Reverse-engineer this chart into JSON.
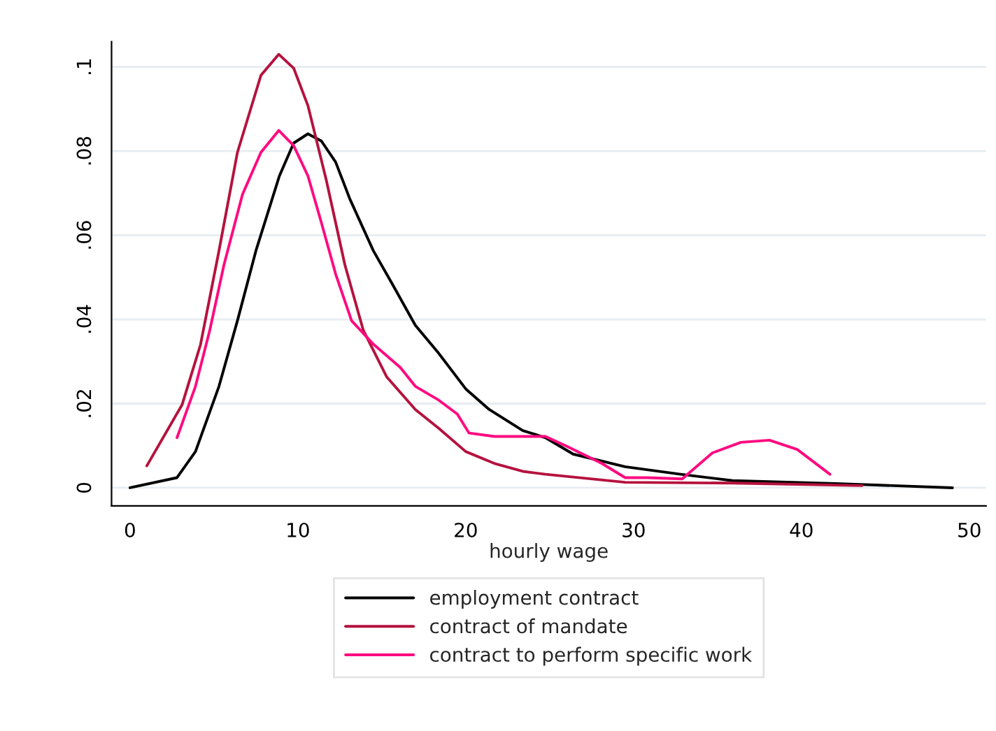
{
  "chart_data": {
    "type": "line",
    "xlabel": "hourly wage",
    "xlim": [
      -1.1,
      51
    ],
    "ylim": [
      -0.0043,
      0.106
    ],
    "xticks": [
      0,
      10,
      20,
      30,
      40,
      50
    ],
    "yticks": [
      {
        "value": 0,
        "label": "0"
      },
      {
        "value": 0.02,
        "label": ".02"
      },
      {
        "value": 0.04,
        "label": ".04"
      },
      {
        "value": 0.06,
        "label": ".06"
      },
      {
        "value": 0.08,
        "label": ".08"
      },
      {
        "value": 0.1,
        "label": ".1"
      }
    ],
    "grid": "y",
    "legend": "bottom",
    "line_style": "solid",
    "series": [
      {
        "name": "employment contract",
        "color": "#000000",
        "x": [
          0,
          2.8,
          3.9,
          5.3,
          6.4,
          7.5,
          8.9,
          9.75,
          10.6,
          11.4,
          12.25,
          13.1,
          14.5,
          15.6,
          17.0,
          18.4,
          20.0,
          21.4,
          23.4,
          24.75,
          26.4,
          29.5,
          32.8,
          35.9,
          42,
          49
        ],
        "values": [
          0.0,
          0.0024,
          0.0086,
          0.0241,
          0.0397,
          0.0563,
          0.0741,
          0.0819,
          0.0841,
          0.0824,
          0.0774,
          0.0686,
          0.0563,
          0.0486,
          0.0386,
          0.0319,
          0.0235,
          0.0186,
          0.0136,
          0.0119,
          0.008,
          0.005,
          0.0032,
          0.0017,
          0.001,
          0.0
        ]
      },
      {
        "name": "contract of mandate",
        "color": "#b5123e",
        "x": [
          1.0,
          3.1,
          4.2,
          5.3,
          6.4,
          7.8,
          8.86,
          9.75,
          10.6,
          11.7,
          12.8,
          13.9,
          15.3,
          17.0,
          18.4,
          20.0,
          21.7,
          23.4,
          24.75,
          29.5,
          35.9,
          43.6
        ],
        "values": [
          0.0052,
          0.0197,
          0.034,
          0.0563,
          0.0797,
          0.098,
          0.103,
          0.0997,
          0.0908,
          0.073,
          0.053,
          0.0374,
          0.0263,
          0.0186,
          0.0141,
          0.0086,
          0.0058,
          0.0039,
          0.0032,
          0.0013,
          0.0011,
          0.0005
        ]
      },
      {
        "name": "contract to perform specific work",
        "color": "#ff0a80",
        "x": [
          2.8,
          3.9,
          4.75,
          5.6,
          6.7,
          7.8,
          8.86,
          9.75,
          10.6,
          11.4,
          12.25,
          13.2,
          14.5,
          16.1,
          17.0,
          18.4,
          19.5,
          20.2,
          21.7,
          24.75,
          26.1,
          28.1,
          29.5,
          30.8,
          32.9,
          34.7,
          36.4,
          38.1,
          39.75,
          41.7
        ],
        "values": [
          0.0119,
          0.0241,
          0.0374,
          0.053,
          0.0697,
          0.0797,
          0.0849,
          0.0813,
          0.0741,
          0.063,
          0.0508,
          0.0397,
          0.0341,
          0.0286,
          0.0241,
          0.0208,
          0.0175,
          0.013,
          0.0122,
          0.0122,
          0.0097,
          0.0058,
          0.0024,
          0.0024,
          0.0021,
          0.0083,
          0.0108,
          0.0113,
          0.0091,
          0.0032
        ]
      }
    ]
  }
}
